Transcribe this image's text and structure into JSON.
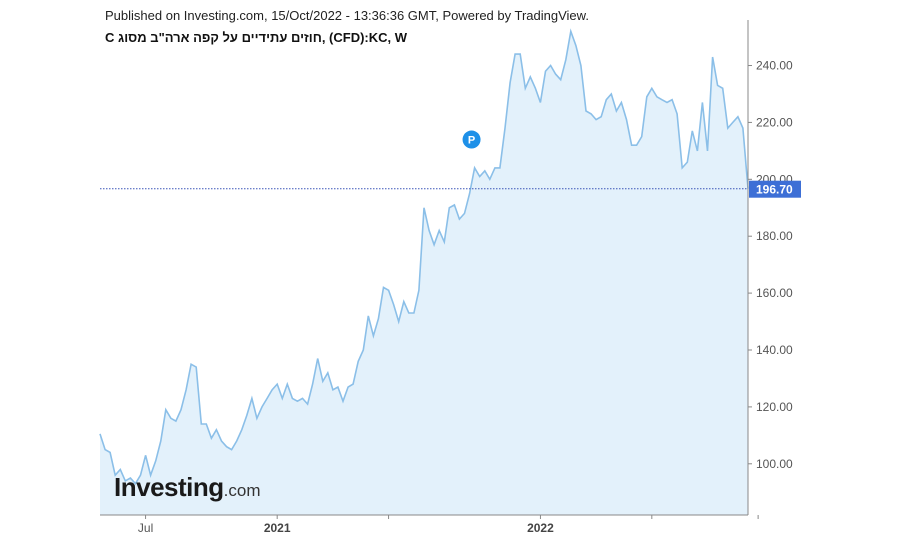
{
  "header": {
    "published": "Published on Investing.com, 15/Oct/2022 - 13:36:36 GMT, Powered by TradingView.",
    "title": "C חוזים עתידיים על קפה ארה\"ב מסוג, (CFD):KC, W"
  },
  "logo": {
    "main": "Investing",
    "suffix": ".com"
  },
  "marker": {
    "label": "P"
  },
  "price_tag": {
    "text": "196.70",
    "value": 196.7
  },
  "colors": {
    "line": "#8bbfe8",
    "fill": "#e3f1fb",
    "tag": "#3d6fd6",
    "marker": "#1e90e8",
    "dotted": "#3a55b8"
  },
  "chart_data": {
    "type": "area",
    "title": "C חוזים עתידיים על קפה ארה\"ב מסוג, (CFD):KC, W",
    "xlabel": "",
    "ylabel": "",
    "ylim": [
      82,
      256
    ],
    "x_ticks": [
      {
        "label": "Jul",
        "index": 9
      },
      {
        "label": "2021",
        "index": 35
      },
      {
        "label": "",
        "index": 57
      },
      {
        "label": "2022",
        "index": 87
      },
      {
        "label": "",
        "index": 109
      },
      {
        "label": "",
        "index": 130
      }
    ],
    "y_ticks": [
      {
        "label": "100.00",
        "value": 100
      },
      {
        "label": "120.00",
        "value": 120
      },
      {
        "label": "140.00",
        "value": 140
      },
      {
        "label": "160.00",
        "value": 160
      },
      {
        "label": "180.00",
        "value": 180
      },
      {
        "label": "200.00",
        "value": 200
      },
      {
        "label": "220.00",
        "value": 220
      },
      {
        "label": "240.00",
        "value": 240
      }
    ],
    "series": [
      {
        "values": [
          110.5,
          105,
          104,
          96,
          98,
          94,
          95,
          93,
          96,
          103,
          96,
          101,
          108,
          119,
          116,
          115,
          119,
          126,
          135,
          134,
          114,
          114,
          109,
          112,
          108,
          106,
          105,
          108,
          112,
          117,
          123,
          116,
          120,
          123,
          126,
          128,
          123,
          128,
          123,
          122,
          123,
          121,
          128,
          137,
          129,
          132,
          126,
          127,
          122,
          127,
          128,
          136,
          140,
          152,
          145,
          151,
          162,
          161,
          156,
          150,
          157,
          153,
          153,
          161,
          190,
          182,
          177,
          182,
          178,
          190,
          191,
          186,
          188,
          195,
          204,
          201,
          203,
          200,
          204,
          204,
          218,
          234,
          244,
          244,
          232,
          236,
          232,
          227,
          238,
          240,
          237,
          235,
          242,
          252,
          247,
          240,
          224,
          223,
          221,
          222,
          228,
          230,
          224,
          227,
          221,
          212,
          212,
          215,
          229,
          232,
          229,
          228,
          227,
          228,
          223,
          204,
          206,
          217,
          210,
          227,
          210,
          243,
          233,
          232,
          218,
          220,
          222,
          218,
          196.7
        ]
      }
    ]
  }
}
